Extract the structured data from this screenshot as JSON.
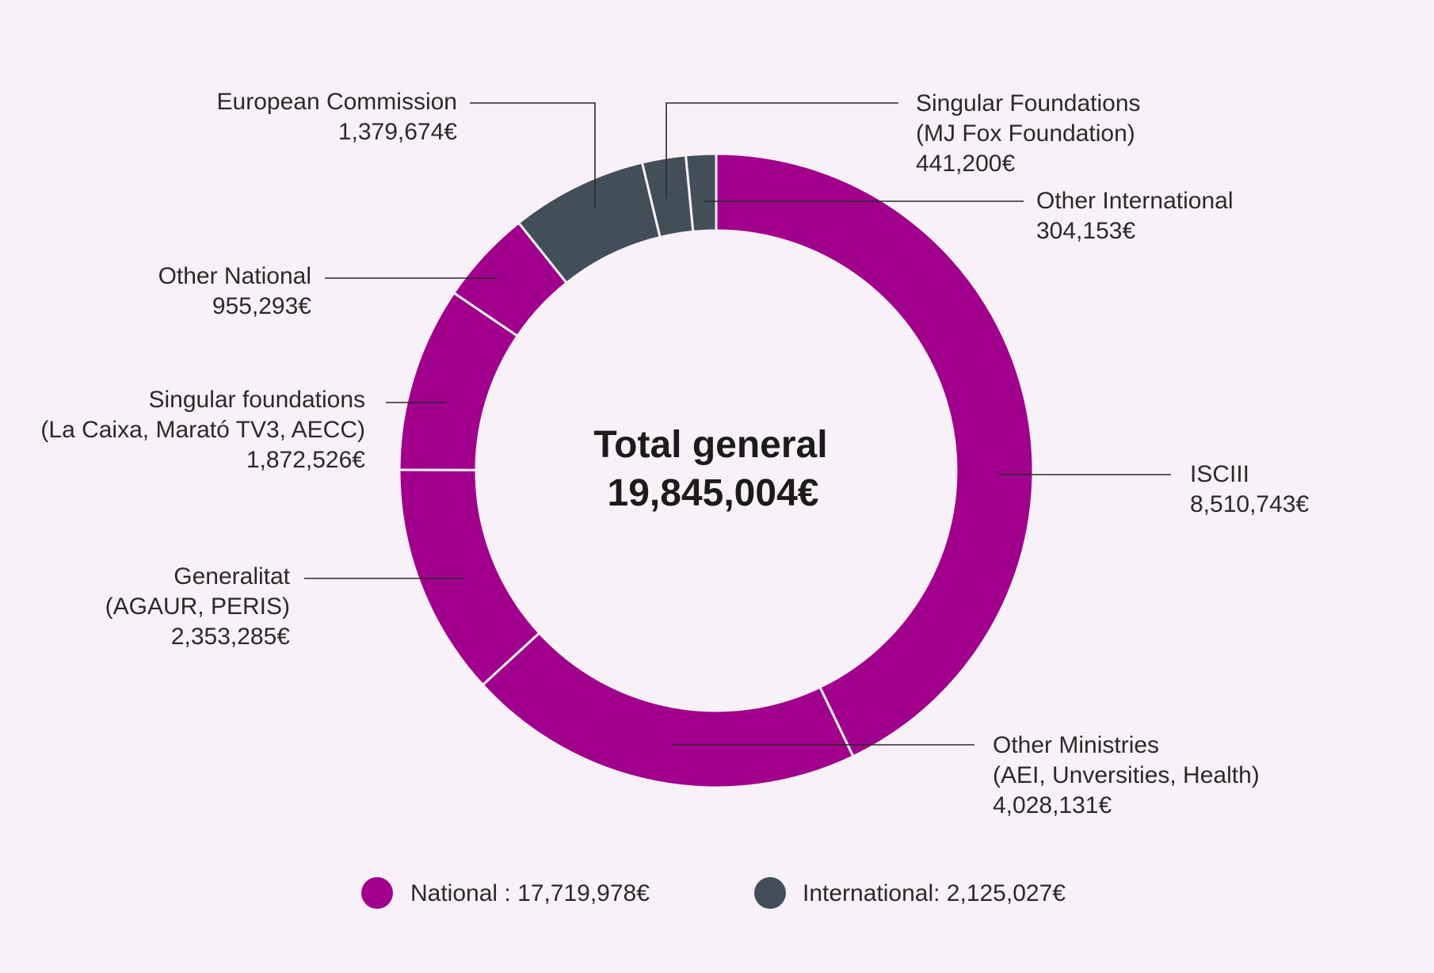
{
  "chart_data": {
    "type": "donut",
    "center_text": {
      "line1": "Total general",
      "line2": "19,845,004€"
    },
    "colors": {
      "National": "#a0008c",
      "International": "#434f58"
    },
    "slices": [
      {
        "key": "isciii",
        "lines": [
          "ISCIII",
          "8,510,743€"
        ],
        "value": 8510743,
        "group": "National"
      },
      {
        "key": "other-ministries",
        "lines": [
          "Other Ministries",
          "(AEI, Unversities, Health)",
          "4,028,131€"
        ],
        "value": 4028131,
        "group": "National"
      },
      {
        "key": "generalitat",
        "lines": [
          "Generalitat",
          "(AGAUR, PERIS)",
          "2,353,285€"
        ],
        "value": 2353285,
        "group": "National"
      },
      {
        "key": "singular-foundations-national",
        "lines": [
          "Singular foundations",
          "(La Caixa, Marató TV3, AECC)",
          "1,872,526€"
        ],
        "value": 1872526,
        "group": "National"
      },
      {
        "key": "other-national",
        "lines": [
          "Other National",
          "955,293€"
        ],
        "value": 955293,
        "group": "National"
      },
      {
        "key": "european-commission",
        "lines": [
          "European Commission",
          "1,379,674€"
        ],
        "value": 1379674,
        "group": "International"
      },
      {
        "key": "singular-foundations-international",
        "lines": [
          "Singular Foundations",
          "(MJ Fox Foundation)",
          "441,200€"
        ],
        "value": 441200,
        "group": "International"
      },
      {
        "key": "other-international",
        "lines": [
          "Other International",
          "304,153€"
        ],
        "value": 304153,
        "group": "International"
      }
    ],
    "legend": [
      {
        "group": "National",
        "label": "National : 17,719,978€"
      },
      {
        "group": "International",
        "label": "International:  2,125,027€"
      }
    ]
  }
}
